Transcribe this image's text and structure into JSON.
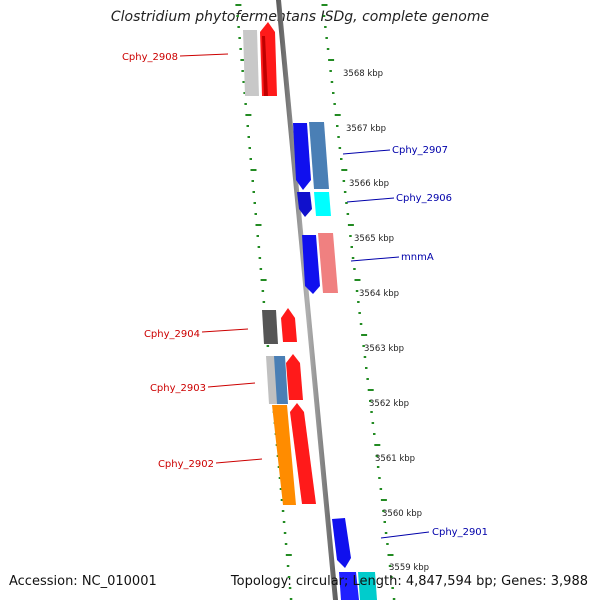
{
  "title": "Clostridium phytofermentans ISDg, complete genome",
  "accession_label": "Accession: NC_010001",
  "topology_label": "Topology: circular; Length: 4,847,594 bp; Genes: 3,988",
  "colors": {
    "forward_label": "#cc0000",
    "reverse_label": "#0000aa",
    "dotted_ring": "#228b22",
    "backbone": "#888888"
  },
  "ticks": [
    "3568 kbp",
    "3567 kbp",
    "3566 kbp",
    "3565 kbp",
    "3564 kbp",
    "3563 kbp",
    "3562 kbp",
    "3561 kbp",
    "3560 kbp",
    "3559 kbp"
  ],
  "genes": [
    {
      "label": "Cphy_2908",
      "strand": "forward"
    },
    {
      "label": "Cphy_2907",
      "strand": "reverse"
    },
    {
      "label": "Cphy_2906",
      "strand": "reverse"
    },
    {
      "label": "mnmA",
      "strand": "reverse"
    },
    {
      "label": "Cphy_2904",
      "strand": "forward"
    },
    {
      "label": "Cphy_2903",
      "strand": "forward"
    },
    {
      "label": "Cphy_2902",
      "strand": "forward"
    },
    {
      "label": "Cphy_2901",
      "strand": "reverse"
    }
  ]
}
